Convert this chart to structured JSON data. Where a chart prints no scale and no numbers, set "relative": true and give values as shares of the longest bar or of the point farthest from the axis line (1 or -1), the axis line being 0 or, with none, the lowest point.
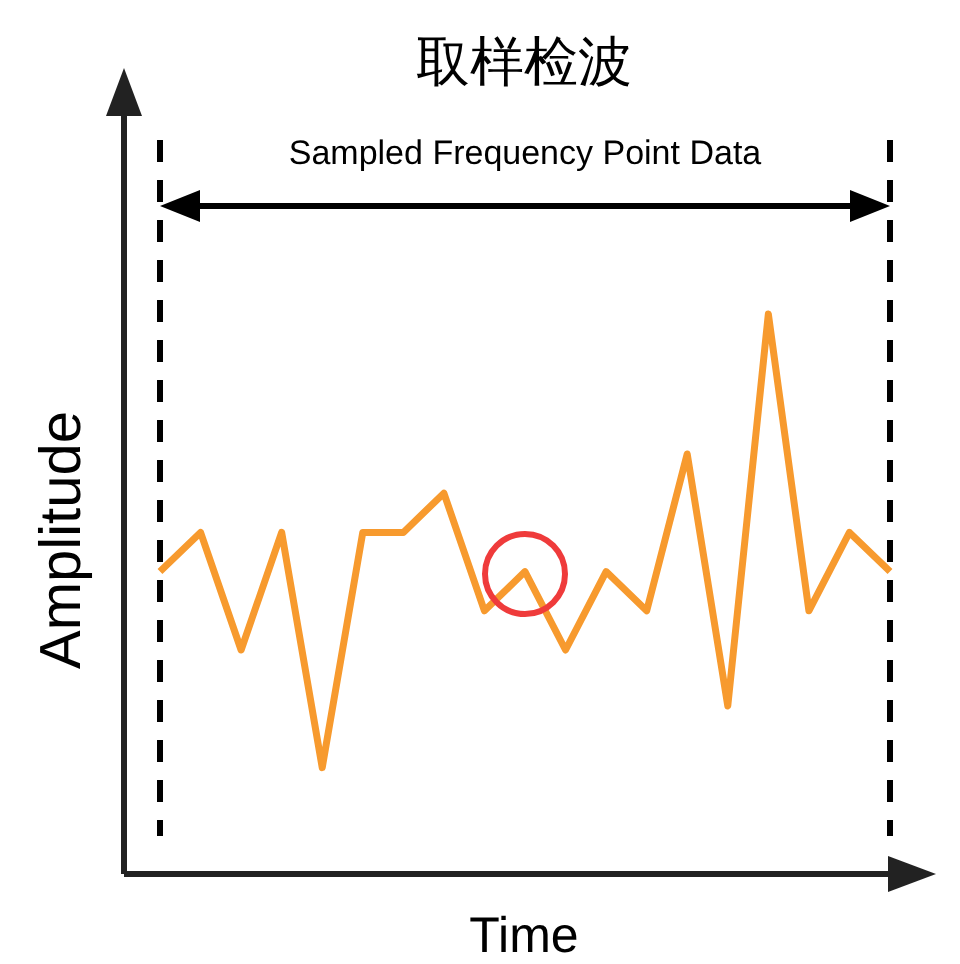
{
  "chart_data": {
    "type": "line",
    "title": "取样检波",
    "xlabel": "Time",
    "ylabel": "Amplitude",
    "relative": true,
    "categories": [
      null,
      null,
      null,
      null,
      null,
      null,
      null,
      null,
      null,
      null,
      null,
      null,
      null,
      null,
      null,
      null,
      null,
      null,
      null
    ],
    "series": [
      {
        "color": "#f79a2e",
        "values": [
          0.54,
          0.61,
          0.4,
          0.61,
          0.19,
          0.61,
          0.61,
          0.68,
          0.47,
          0.54,
          0.4,
          0.54,
          0.47,
          0.75,
          0.3,
          1,
          0.47,
          0.61,
          0.54
        ]
      }
    ],
    "annotations": [
      "Sampled Frequency Point Data"
    ],
    "marker": "none",
    "line_style": "solid"
  }
}
